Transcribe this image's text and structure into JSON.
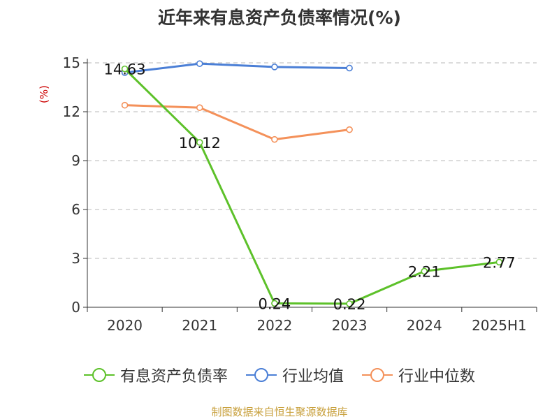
{
  "chart_data": {
    "type": "line",
    "title": "近年来有息资产负债率情况(%)",
    "ylabel": "(%)",
    "xlabel": "",
    "categories": [
      "2020",
      "2021",
      "2022",
      "2023",
      "2024",
      "2025H1"
    ],
    "ylim": [
      0,
      15
    ],
    "yticks": [
      0,
      3,
      6,
      9,
      12,
      15
    ],
    "grid": true,
    "legend_position": "bottom",
    "series": [
      {
        "name": "有息资产负债率",
        "color": "#5dc12a",
        "values": [
          14.63,
          10.12,
          0.24,
          0.22,
          2.21,
          2.77
        ],
        "labels": [
          "14.63",
          "10.12",
          "0.24",
          "0.22",
          "2.21",
          "2.77"
        ]
      },
      {
        "name": "行业均值",
        "color": "#4b7fd6",
        "values": [
          14.4,
          14.95,
          14.75,
          14.68,
          null,
          null
        ]
      },
      {
        "name": "行业中位数",
        "color": "#f4915a",
        "values": [
          12.4,
          12.25,
          10.3,
          10.9,
          null,
          null
        ]
      }
    ]
  },
  "source": "制图数据来自恒生聚源数据库"
}
